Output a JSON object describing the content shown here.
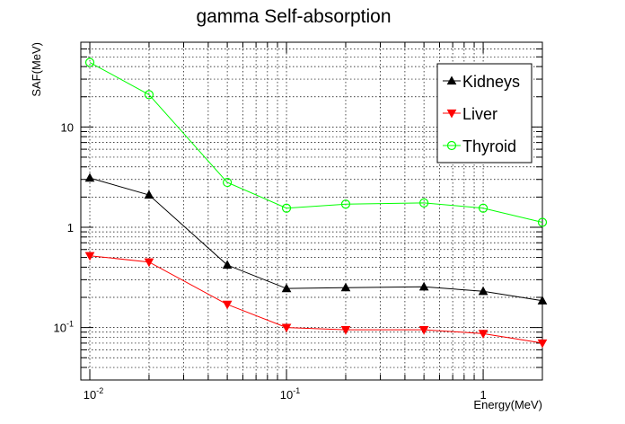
{
  "chart_data": {
    "type": "line",
    "title": "gamma Self-absorption",
    "xlabel": "Energy(MeV)",
    "ylabel": "SAF(MeV)",
    "x_scale": "log",
    "y_scale": "log",
    "xlim": [
      0.009,
      2.0
    ],
    "ylim": [
      0.03,
      70
    ],
    "grid": true,
    "legend_position": "top-right",
    "x": [
      0.01,
      0.02,
      0.05,
      0.1,
      0.2,
      0.5,
      1.0,
      2.0
    ],
    "x_ticks": [
      {
        "value": 0.01,
        "base": "10",
        "exp": "-2"
      },
      {
        "value": 0.1,
        "base": "10",
        "exp": "-1"
      },
      {
        "value": 1,
        "base": "1",
        "exp": ""
      }
    ],
    "y_ticks": [
      {
        "value": 0.1,
        "base": "10",
        "exp": "-1"
      },
      {
        "value": 1,
        "base": "1",
        "exp": ""
      },
      {
        "value": 10,
        "base": "10",
        "exp": ""
      }
    ],
    "series": [
      {
        "name": "Kidneys",
        "color": "#000000",
        "marker": "triangle-up",
        "values": [
          3.1,
          2.1,
          0.42,
          0.245,
          0.25,
          0.255,
          0.23,
          0.185
        ]
      },
      {
        "name": "Liver",
        "color": "#ff0000",
        "marker": "triangle-down",
        "values": [
          0.52,
          0.45,
          0.17,
          0.1,
          0.095,
          0.095,
          0.087,
          0.07
        ]
      },
      {
        "name": "Thyroid",
        "color": "#00ff00",
        "marker": "open-circle",
        "values": [
          44,
          21,
          2.8,
          1.55,
          1.7,
          1.75,
          1.55,
          1.12
        ]
      }
    ]
  }
}
